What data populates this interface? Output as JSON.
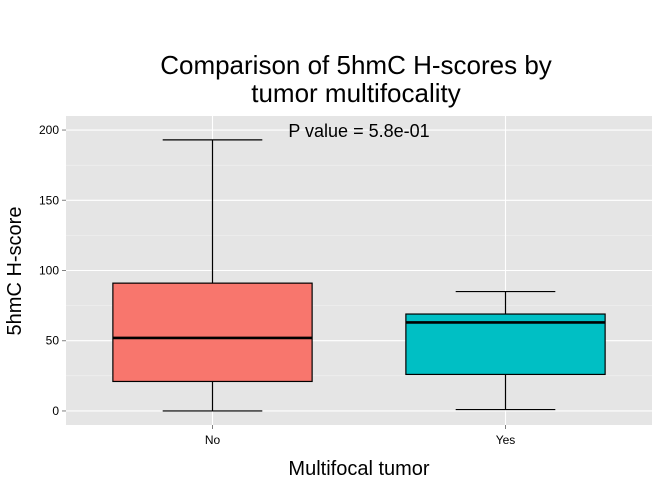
{
  "chart_data": {
    "type": "boxplot",
    "title_lines": [
      "Comparison of 5hmC H-scores by",
      "tumor multifocality"
    ],
    "xlabel": "Multifocal tumor",
    "ylabel": "5hmC H-score",
    "categories": [
      "No",
      "Yes"
    ],
    "ylim": [
      -10,
      210
    ],
    "yticks": [
      0,
      50,
      100,
      150,
      200
    ],
    "grid": true,
    "annotation": "P value = 5.8e-01",
    "boxes": [
      {
        "category": "No",
        "min": 0,
        "q1": 21,
        "median": 52,
        "q3": 91,
        "max": 193,
        "color": "#F8766D"
      },
      {
        "category": "Yes",
        "min": 1,
        "q1": 26,
        "median": 63,
        "q3": 69,
        "max": 85,
        "color": "#00BFC4"
      }
    ],
    "panel_background": "#E5E5E5",
    "grid_color": "#FFFFFF"
  }
}
